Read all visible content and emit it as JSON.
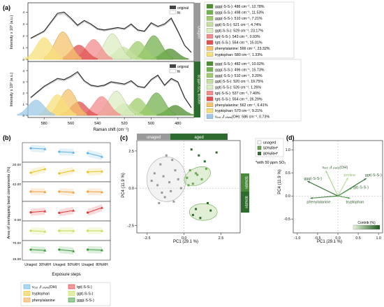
{
  "panels": {
    "a": "(a)",
    "b": "(b)",
    "c": "(c)",
    "d": "(d)"
  },
  "panel_a": {
    "legend_original": "original",
    "legend_fit": "fit",
    "ylabel_top": "Intensity x 10³ (a.u.)",
    "ylabel_bottom": "Intensity x 10³ (a.u.)",
    "side_top": "Unaged",
    "side_bottom": "50 ppm SO₂, 80%RH",
    "xlabel": "Raman shift (cm⁻¹)",
    "xticks": [
      "580",
      "560",
      "540",
      "520",
      "500",
      "480"
    ],
    "yticks": [
      "0",
      "1",
      "2",
      "3",
      "4"
    ],
    "legend_top": [
      {
        "text": "ggg(-S-S-): 486 cm⁻¹, 12.78%",
        "color": "#4f8f2f"
      },
      {
        "text": "ggg(-S-S-): 498 cm⁻¹, 11.53%",
        "color": "#74b24f"
      },
      {
        "text": "ggg(-S-S-): 510 cm⁻¹, 7.21%",
        "color": "#9fcc6e"
      },
      {
        "text": "ggt(-S-S-): 521 cm⁻¹, 4.74%",
        "color": "#c5e0a0"
      },
      {
        "text": "ggt(-S-S-): 529 cm⁻¹, 23.17%",
        "color": "#dbeec2"
      },
      {
        "text": "tgt(-S-S-): 543 cm⁻¹, 0.93%",
        "color": "#f28c8c"
      },
      {
        "text": "tgt(-S-S-): 554 cm⁻¹, 15.01%",
        "color": "#e05050"
      },
      {
        "text": "phenylalanine: 566 cm⁻¹, 23.32%",
        "color": "#f5c36b"
      },
      {
        "text": "tryptophan: 580 cm⁻¹, 1.33%",
        "color": "#f7e07a"
      }
    ],
    "legend_bottom": [
      {
        "text": "ggg(-S-S-): 482 cm⁻¹, 10.02%",
        "color": "#4f8f2f"
      },
      {
        "text": "ggg(-S-S-): 496 cm⁻¹, 15.73%",
        "color": "#74b24f"
      },
      {
        "text": "ggg(-S-S-): 510 cm⁻¹, 3.20%",
        "color": "#9fcc6e"
      },
      {
        "text": "ggt(-S-S-): 520 cm⁻¹, 19.75%",
        "color": "#c5e0a0"
      },
      {
        "text": "ggt(-S-S-): 526 cm⁻¹, 1.26%",
        "color": "#dbeec2"
      },
      {
        "text": "tgt(-S-S-): 537 cm⁻¹, 7.40%",
        "color": "#f28c8c"
      },
      {
        "text": "tgt(-S-S-): 554 cm⁻¹, 26.29%",
        "color": "#e05050"
      },
      {
        "text": "phenylalanine: 562 cm⁻¹, 6.41%",
        "color": "#f5c36b"
      },
      {
        "text": "tryptophan: 570 cm⁻¹, 9.21%",
        "color": "#f7e07a"
      },
      {
        "text": "νₒᵤₜ ₒf ₚₗₐₙₑ(OH): 586 cm⁻¹, 0.73%",
        "color": "#9cc9e8"
      }
    ]
  },
  "panel_b": {
    "ylabel": "Area of overlapping band components (%)",
    "xlabel": "Exposure steps",
    "xticks": [
      "Unaged",
      "30%RH",
      "Unaged",
      "50%RH",
      "Unaged",
      "80%RH"
    ],
    "rows": [
      {
        "name": "oop(OH)",
        "color": "#5fb2e6",
        "top": "",
        "bottom": ""
      },
      {
        "name": "tryptophan",
        "color": "#e8c320",
        "top": "20.00",
        "bottom": ""
      },
      {
        "name": "phenylalanine",
        "color": "#f0a03c",
        "top": "42.00",
        "bottom": ""
      },
      {
        "name": "tgt",
        "color": "#e03838",
        "top": "",
        "bottom": "0.00"
      },
      {
        "name": "ggt",
        "color": "#c8dc50",
        "top": "",
        "bottom": ""
      },
      {
        "name": "ggg",
        "color": "#3a9a3a",
        "top": "70.00",
        "bottom": "15.00"
      }
    ],
    "legend": [
      {
        "text": "νₒᵤₜ ₒf ₚₗₐₙₑ(OH)",
        "color": "#5fb2e6"
      },
      {
        "text": "tgt(-S-S-)",
        "color": "#e03838"
      },
      {
        "text": "tryptophan",
        "color": "#e8c320"
      },
      {
        "text": "ggt(-S-S-)",
        "color": "#c8dc50"
      },
      {
        "text": "phenylalanine",
        "color": "#f0a03c"
      },
      {
        "text": "ggg(-S-S-)",
        "color": "#3a9a3a"
      }
    ]
  },
  "panel_c": {
    "bar_unaged": "unaged",
    "bar_aged": "aged",
    "xlabel": "PC1 (29.1 %)",
    "ylabel": "PC4 (11.9 %)",
    "xticks": [
      "-2.5",
      "0.0",
      "2.5"
    ],
    "yticks": [
      "-2.5",
      "0.0",
      "2.5"
    ],
    "legend": [
      "unaged",
      "50%RH*",
      "80%RH*"
    ],
    "note": "*with 50 ppm SO₂",
    "side_labels": [
      "50%RH",
      "80%RH"
    ]
  },
  "panel_d": {
    "xlabel": "PC1 (29.1 %)",
    "ylabel": "PC4 (11.9 %)",
    "xticks": [
      "-1.0",
      "-0.5",
      "0.0",
      "0.5",
      "1.0"
    ],
    "yticks": [
      "-0.5",
      "0.0",
      "0.5",
      "1.0"
    ],
    "labels": {
      "oop": "νₒᵤₜ ₒf ₚₗₐₙₑ(OH)",
      "ggg": "ggg(-S-S-)",
      "ggt": "ggt(-S-S-)",
      "tgt": "tgt(-S-S-)",
      "proline": "proline",
      "phenylalanine": "phenylalanine",
      "tryptophan": "tryptophan"
    },
    "colorbar": "Contrib (%)"
  },
  "chart_data": [
    {
      "type": "area",
      "panel": "a-top",
      "title": "",
      "xlabel": "Raman shift (cm⁻¹)",
      "ylabel": "Intensity x 10³ (a.u.)",
      "xlim": [
        590,
        470
      ],
      "ylim": [
        0,
        4.5
      ],
      "series": [
        {
          "name": "original",
          "x": [
            590,
            580,
            570,
            565,
            560,
            555,
            550,
            545,
            540,
            535,
            530,
            525,
            520,
            515,
            510,
            505,
            500,
            495,
            490,
            485,
            480,
            475,
            470
          ],
          "values": [
            1.8,
            2.4,
            3.9,
            4.0,
            3.5,
            2.9,
            3.3,
            3.0,
            2.6,
            2.5,
            2.6,
            2.7,
            2.6,
            3.0,
            2.5,
            2.4,
            3.1,
            2.8,
            3.0,
            3.5,
            2.4,
            1.2,
            0.6
          ]
        }
      ]
    },
    {
      "type": "area",
      "panel": "a-bottom",
      "title": "",
      "xlabel": "Raman shift (cm⁻¹)",
      "ylabel": "Intensity x 10³ (a.u.)",
      "xlim": [
        590,
        470
      ],
      "ylim": [
        0,
        4.5
      ],
      "series": [
        {
          "name": "original",
          "x": [
            590,
            580,
            570,
            565,
            560,
            555,
            550,
            545,
            540,
            535,
            530,
            525,
            520,
            515,
            510,
            505,
            500,
            495,
            490,
            485,
            480,
            475,
            470
          ],
          "values": [
            1.6,
            2.6,
            3.3,
            3.2,
            3.5,
            3.9,
            3.1,
            2.7,
            2.6,
            2.7,
            3.0,
            2.9,
            2.8,
            3.1,
            2.6,
            2.5,
            3.2,
            3.6,
            2.7,
            3.3,
            3.0,
            1.6,
            0.7
          ]
        }
      ]
    },
    {
      "type": "line",
      "panel": "b",
      "xlabel": "Exposure steps",
      "ylabel": "Area of overlapping band components (%)",
      "categories": [
        "Unaged",
        "30%RH",
        "Unaged",
        "50%RH",
        "Unaged",
        "80%RH"
      ],
      "series": [
        {
          "name": "oop(OH)",
          "values": [
            0.8,
            0.75,
            0.55,
            0.5,
            0.45,
            0.2
          ]
        },
        {
          "name": "tryptophan",
          "values": [
            0.45,
            0.72,
            0.4,
            0.62,
            0.5,
            0.55
          ]
        },
        {
          "name": "phenylalanine",
          "values": [
            0.5,
            0.48,
            0.5,
            0.45,
            0.5,
            0.47
          ]
        },
        {
          "name": "tgt",
          "values": [
            0.42,
            0.5,
            0.38,
            0.55,
            0.4,
            0.75
          ]
        },
        {
          "name": "ggt",
          "values": [
            0.5,
            0.45,
            0.5,
            0.5,
            0.5,
            0.5
          ]
        },
        {
          "name": "ggg",
          "values": [
            0.55,
            0.5,
            0.55,
            0.45,
            0.55,
            0.52
          ]
        }
      ]
    },
    {
      "type": "scatter",
      "panel": "c",
      "xlabel": "PC1 (29.1 %)",
      "ylabel": "PC4 (11.9 %)",
      "xlim": [
        -3.2,
        3.8
      ],
      "ylim": [
        -3.0,
        3.2
      ],
      "series": [
        {
          "name": "unaged",
          "x": [
            -1.2,
            -1.6,
            -0.8,
            -2.0,
            -1.4,
            -0.6,
            -1.8,
            -1.0,
            -0.4,
            -1.5,
            -2.2,
            -0.9,
            -1.3,
            -0.2,
            -1.7,
            -0.7
          ],
          "values": [
            2.2,
            1.6,
            1.9,
            1.0,
            0.8,
            1.2,
            0.2,
            0.4,
            0.6,
            -0.3,
            0.5,
            -0.2,
            -0.6,
            0.0,
            -1.0,
            -0.9
          ]
        },
        {
          "name": "50%RH*",
          "x": [
            0.4,
            0.8,
            0.2,
            1.2,
            0.6,
            1.5,
            0.9,
            0.3
          ],
          "values": [
            1.2,
            1.0,
            0.7,
            0.6,
            0.3,
            1.3,
            0.9,
            0.2
          ]
        },
        {
          "name": "80%RH*",
          "x": [
            0.5,
            1.0,
            1.4,
            0.8,
            1.8,
            2.2,
            1.1,
            0.6,
            1.6
          ],
          "values": [
            2.6,
            2.2,
            1.8,
            -1.4,
            -1.5,
            2.4,
            -2.0,
            -1.8,
            -1.0
          ]
        }
      ]
    },
    {
      "type": "scatter",
      "panel": "d",
      "xlabel": "PC1 (29.1 %)",
      "ylabel": "PC4 (11.9 %)",
      "xlim": [
        -1.1,
        1.1
      ],
      "ylim": [
        -0.8,
        1.2
      ],
      "series": [
        {
          "name": "oop(OH)",
          "x": [
            -0.3
          ],
          "values": [
            0.55
          ]
        },
        {
          "name": "ggg(-S-S-)",
          "x": [
            -0.75
          ],
          "values": [
            0.32
          ]
        },
        {
          "name": "phenylalanine",
          "x": [
            -0.68
          ],
          "values": [
            -0.05
          ]
        },
        {
          "name": "proline",
          "x": [
            0.25
          ],
          "values": [
            0.4
          ]
        },
        {
          "name": "ggt(-S-S-)",
          "x": [
            0.7
          ],
          "values": [
            0.38
          ]
        },
        {
          "name": "tgt(-S-S-)",
          "x": [
            0.35
          ],
          "values": [
            0.18
          ]
        },
        {
          "name": "tryptophan",
          "x": [
            0.3
          ],
          "values": [
            -0.05
          ]
        }
      ]
    }
  ]
}
